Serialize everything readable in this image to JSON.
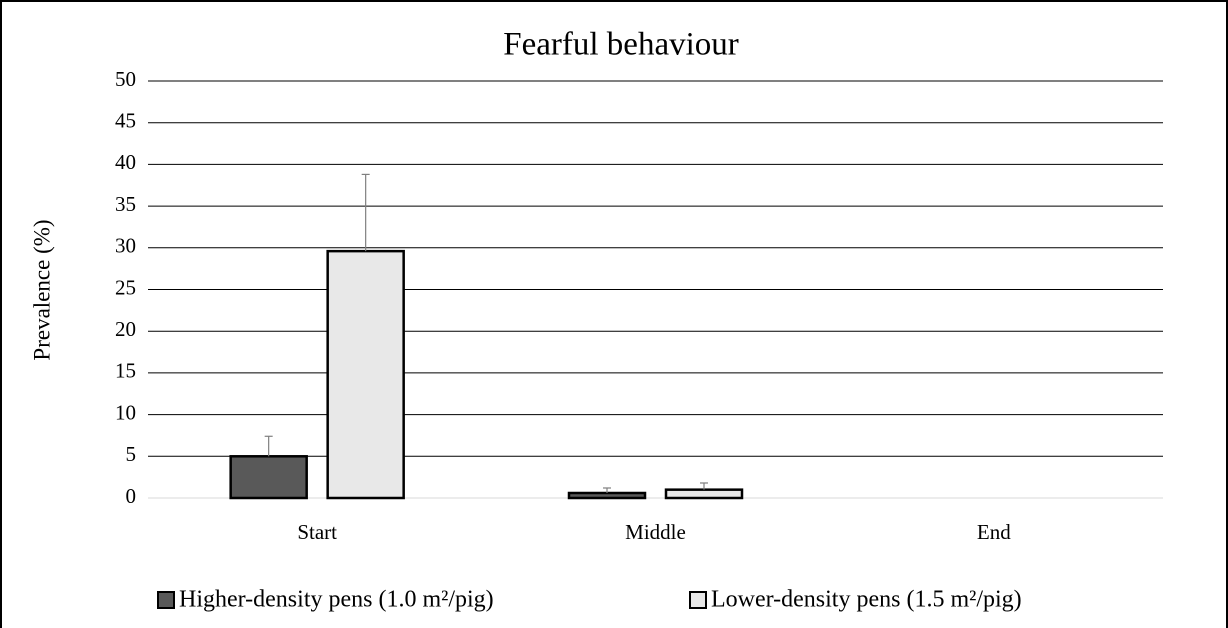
{
  "chart_data": {
    "type": "bar",
    "title": "Fearful behaviour",
    "y_label": "Prevalence (%)",
    "categories": [
      "Start",
      "Middle",
      "End"
    ],
    "series": [
      {
        "name": "Higher-density pens (1.0 m²/pig)",
        "color": "#595959",
        "values": [
          5.0,
          0.6,
          0
        ],
        "errors": [
          2.4,
          0.6,
          0
        ]
      },
      {
        "name": "Lower-density pens  (1.5 m²/pig)",
        "color": "#e8e8e8",
        "values": [
          29.6,
          1.0,
          0
        ],
        "errors": [
          9.2,
          0.8,
          0
        ]
      }
    ],
    "ylim": [
      0,
      50
    ],
    "yticks": [
      0,
      5,
      10,
      15,
      20,
      25,
      30,
      35,
      40,
      45,
      50
    ],
    "grid": true,
    "legend": "bottom"
  }
}
